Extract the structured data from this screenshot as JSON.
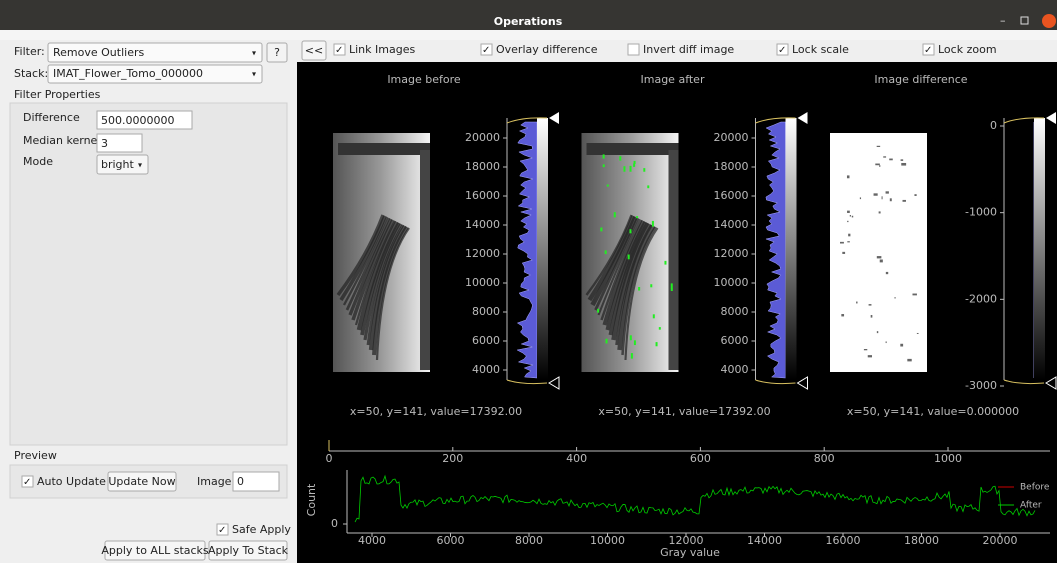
{
  "window": {
    "title": "Operations"
  },
  "filter_panel": {
    "filter_label": "Filter:",
    "filter_value": "Remove Outliers",
    "help": "?",
    "stack_label": "Stack:",
    "stack_value": "IMAT_Flower_Tomo_000000",
    "properties_title": "Filter Properties",
    "difference_label": "Difference",
    "difference_value": "500.0000000",
    "kernel_label": "Median kernel",
    "kernel_value": "3",
    "mode_label": "Mode",
    "mode_value": "bright",
    "preview_title": "Preview",
    "auto_update": {
      "label": "Auto Update",
      "checked": true
    },
    "update_now": "Update Now",
    "image_label": "Image:",
    "image_value": "0",
    "safe_apply": {
      "label": "Safe Apply",
      "checked": true
    },
    "apply_all": "Apply to ALL stacks",
    "apply_stack": "Apply To Stack"
  },
  "toolbar": {
    "collapse": "<<",
    "checkboxes": [
      {
        "label": "Link Images",
        "checked": true
      },
      {
        "label": "Overlay difference",
        "checked": true
      },
      {
        "label": "Invert diff image",
        "checked": false
      },
      {
        "label": "Lock scale",
        "checked": true
      },
      {
        "label": "Lock zoom",
        "checked": true
      }
    ]
  },
  "views": [
    {
      "title": "Image before",
      "coords": "x=50, y=141, value=17392.00",
      "ticks": [
        20000,
        18000,
        16000,
        14000,
        12000,
        10000,
        8000,
        6000,
        4000
      ]
    },
    {
      "title": "Image after",
      "coords": "x=50, y=141, value=17392.00",
      "ticks": [
        20000,
        18000,
        16000,
        14000,
        12000,
        10000,
        8000,
        6000,
        4000
      ]
    },
    {
      "title": "Image difference",
      "coords": "x=50, y=141, value=0.000000",
      "ticks": [
        0,
        -1000,
        -2000,
        -3000
      ]
    }
  ],
  "histogram": {
    "top_ticks": [
      0,
      200,
      400,
      600,
      800,
      1000
    ],
    "x_ticks": [
      4000,
      6000,
      8000,
      10000,
      12000,
      14000,
      16000,
      18000,
      20000
    ],
    "y_ticks": [
      0
    ],
    "y_label": "Count",
    "x_label": "Gray value",
    "legend": [
      {
        "name": "Before",
        "color": "#cc0000"
      },
      {
        "name": "After",
        "color": "#00cc00"
      }
    ]
  }
}
